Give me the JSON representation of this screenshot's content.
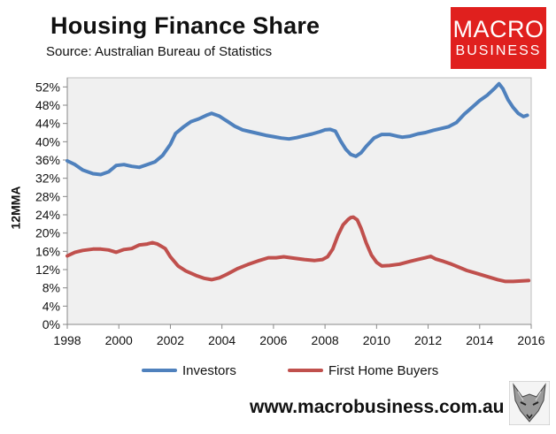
{
  "title": "Housing Finance Share",
  "source": "Source: Australian Bureau of Statistics",
  "logo": {
    "line1": "MACRO",
    "line2": "BUSINESS",
    "color": "#e0201e"
  },
  "footer": {
    "url": "www.macrobusiness.com.au"
  },
  "fox_icon": "fox-logo-icon",
  "chart_data": {
    "type": "line",
    "ylabel": "12MMA",
    "xlim": [
      1998,
      2016
    ],
    "ylim": [
      0,
      54
    ],
    "y_ticks": [
      0,
      4,
      8,
      12,
      16,
      20,
      24,
      28,
      32,
      36,
      40,
      44,
      48,
      52
    ],
    "y_tick_labels": [
      "0%",
      "4%",
      "8%",
      "12%",
      "16%",
      "20%",
      "24%",
      "28%",
      "32%",
      "36%",
      "40%",
      "44%",
      "48%",
      "52%"
    ],
    "x_ticks": [
      1998,
      2000,
      2002,
      2004,
      2006,
      2008,
      2010,
      2012,
      2014,
      2016
    ],
    "x_tick_labels": [
      "1998",
      "2000",
      "2002",
      "2004",
      "2006",
      "2008",
      "2010",
      "2012",
      "2014",
      "2016"
    ],
    "grid": false,
    "legend_position": "bottom",
    "plot_background": "#f0f0f0",
    "series": [
      {
        "name": "Investors",
        "color": "#4f81bd",
        "x": [
          1998.0,
          1998.3,
          1998.6,
          1999.0,
          1999.3,
          1999.6,
          1999.9,
          2000.2,
          2000.5,
          2000.8,
          2001.1,
          2001.4,
          2001.7,
          2002.0,
          2002.2,
          2002.5,
          2002.8,
          2003.1,
          2003.4,
          2003.6,
          2003.9,
          2004.2,
          2004.5,
          2004.8,
          2005.1,
          2005.4,
          2005.7,
          2006.0,
          2006.3,
          2006.6,
          2006.9,
          2007.2,
          2007.5,
          2007.8,
          2008.0,
          2008.2,
          2008.4,
          2008.6,
          2008.8,
          2009.0,
          2009.2,
          2009.4,
          2009.6,
          2009.9,
          2010.2,
          2010.5,
          2010.8,
          2011.0,
          2011.3,
          2011.6,
          2011.9,
          2012.2,
          2012.5,
          2012.8,
          2013.1,
          2013.4,
          2013.7,
          2014.0,
          2014.3,
          2014.6,
          2014.75,
          2014.9,
          2015.1,
          2015.3,
          2015.5,
          2015.7,
          2015.85
        ],
        "values": [
          35.8,
          35.0,
          33.8,
          33.0,
          32.8,
          33.4,
          34.8,
          35.0,
          34.6,
          34.4,
          35.0,
          35.6,
          37.0,
          39.4,
          41.8,
          43.2,
          44.4,
          45.0,
          45.8,
          46.2,
          45.6,
          44.5,
          43.4,
          42.6,
          42.2,
          41.8,
          41.4,
          41.1,
          40.8,
          40.6,
          40.9,
          41.3,
          41.7,
          42.2,
          42.6,
          42.7,
          42.3,
          40.2,
          38.4,
          37.2,
          36.8,
          37.6,
          39.0,
          40.8,
          41.6,
          41.6,
          41.2,
          41.0,
          41.2,
          41.7,
          42.0,
          42.5,
          42.9,
          43.3,
          44.2,
          46.0,
          47.5,
          49.0,
          50.2,
          51.8,
          52.7,
          51.6,
          49.2,
          47.5,
          46.2,
          45.5,
          45.8
        ]
      },
      {
        "name": "First Home Buyers",
        "color": "#c0504d",
        "x": [
          1998.0,
          1998.3,
          1998.6,
          1999.0,
          1999.3,
          1999.6,
          1999.9,
          2000.2,
          2000.5,
          2000.8,
          2001.1,
          2001.3,
          2001.5,
          2001.8,
          2002.0,
          2002.3,
          2002.6,
          2003.0,
          2003.3,
          2003.6,
          2003.9,
          2004.2,
          2004.6,
          2005.0,
          2005.4,
          2005.8,
          2006.1,
          2006.4,
          2006.8,
          2007.2,
          2007.6,
          2007.9,
          2008.1,
          2008.3,
          2008.5,
          2008.7,
          2008.9,
          2009.0,
          2009.1,
          2009.25,
          2009.4,
          2009.6,
          2009.8,
          2010.0,
          2010.2,
          2010.5,
          2010.9,
          2011.3,
          2011.6,
          2011.9,
          2012.1,
          2012.3,
          2012.6,
          2012.9,
          2013.2,
          2013.5,
          2013.8,
          2014.1,
          2014.4,
          2014.7,
          2015.0,
          2015.3,
          2015.6,
          2015.9
        ],
        "values": [
          15.0,
          15.8,
          16.2,
          16.5,
          16.5,
          16.3,
          15.8,
          16.4,
          16.6,
          17.4,
          17.6,
          17.9,
          17.6,
          16.6,
          14.8,
          12.8,
          11.7,
          10.7,
          10.1,
          9.8,
          10.2,
          11.0,
          12.2,
          13.1,
          13.9,
          14.6,
          14.6,
          14.8,
          14.5,
          14.2,
          14.0,
          14.2,
          14.8,
          16.5,
          19.5,
          21.8,
          23.0,
          23.4,
          23.5,
          22.9,
          21.0,
          17.8,
          15.2,
          13.6,
          12.8,
          12.9,
          13.2,
          13.8,
          14.2,
          14.6,
          14.9,
          14.3,
          13.8,
          13.2,
          12.5,
          11.8,
          11.3,
          10.8,
          10.3,
          9.8,
          9.4,
          9.4,
          9.5,
          9.6
        ]
      }
    ]
  }
}
